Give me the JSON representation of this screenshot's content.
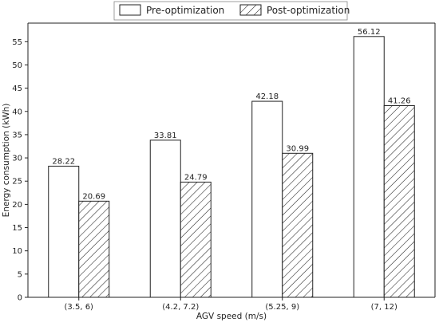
{
  "chart_data": {
    "type": "bar",
    "categories": [
      "(3.5, 6)",
      "(4.2, 7.2)",
      "(5.25, 9)",
      "(7, 12)"
    ],
    "series": [
      {
        "name": "Pre-optimization",
        "values": [
          28.22,
          33.81,
          42.18,
          56.12
        ],
        "pattern": "none"
      },
      {
        "name": "Post-optimization",
        "values": [
          20.69,
          24.79,
          30.99,
          41.26
        ],
        "pattern": "hatch"
      }
    ],
    "data_labels": [
      [
        "28.22",
        "33.81",
        "42.18",
        "56.12"
      ],
      [
        "20.69",
        "24.79",
        "30.99",
        "41.26"
      ]
    ],
    "xlabel": "AGV speed  (m/s)",
    "ylabel": "Energy consumption (kWh)",
    "ylim": [
      0,
      59
    ],
    "yticks": [
      0,
      5,
      10,
      15,
      20,
      25,
      30,
      35,
      40,
      45,
      50,
      55
    ],
    "grid": false,
    "legend": "top-center",
    "colors": {
      "bar_fill": "#ffffff",
      "bar_edge": "#222222",
      "hatch": "#222222",
      "axis": "#222222"
    }
  }
}
